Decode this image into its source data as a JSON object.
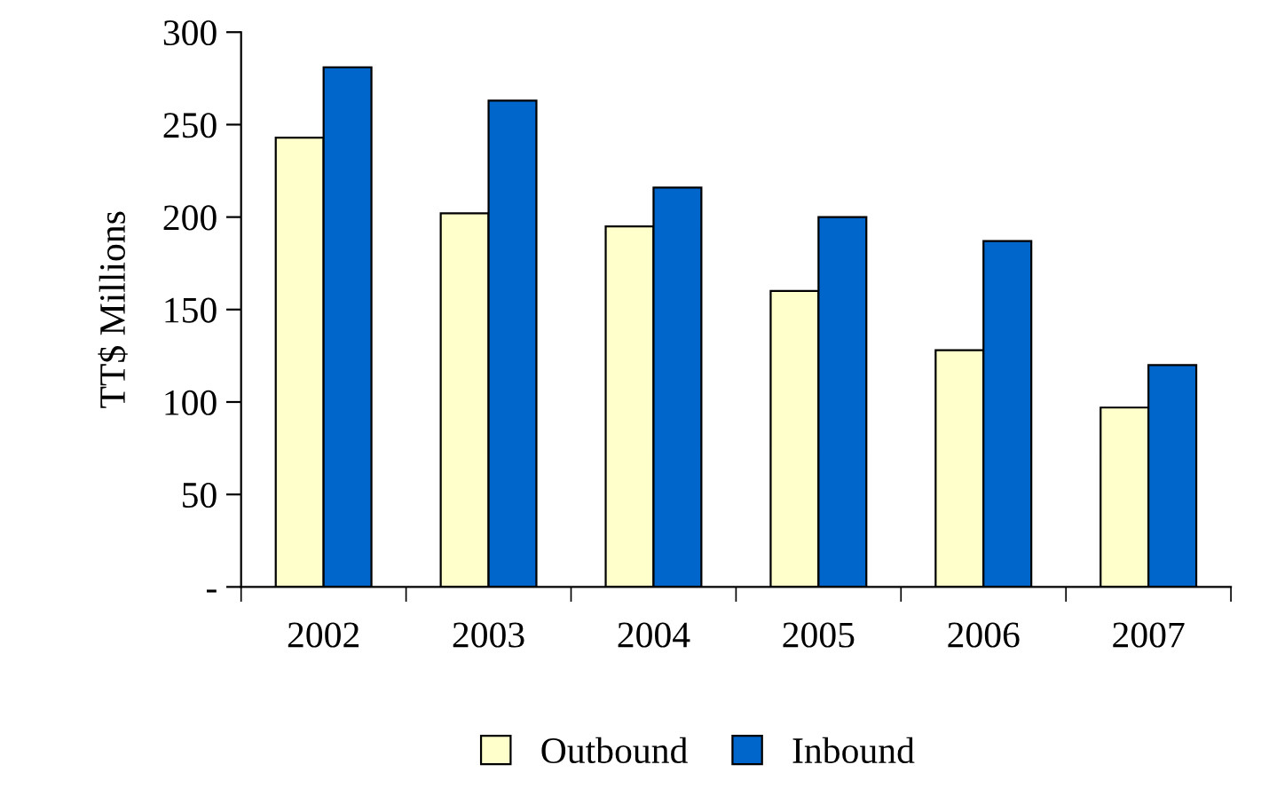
{
  "chart_data": {
    "type": "bar",
    "ylabel": "TT$ Millions",
    "categories": [
      "2002",
      "2003",
      "2004",
      "2005",
      "2006",
      "2007"
    ],
    "series": [
      {
        "name": "Outbound",
        "color": "#ffffcc",
        "values": [
          243,
          202,
          195,
          160,
          128,
          97
        ]
      },
      {
        "name": "Inbound",
        "color": "#0066cc",
        "values": [
          281,
          263,
          216,
          200,
          187,
          120
        ]
      }
    ],
    "ylim": [
      0,
      300
    ],
    "yticks": [
      {
        "value": 0,
        "label": "-"
      },
      50,
      100,
      150,
      200,
      250,
      300
    ],
    "grid": false,
    "legend": "bottom"
  }
}
